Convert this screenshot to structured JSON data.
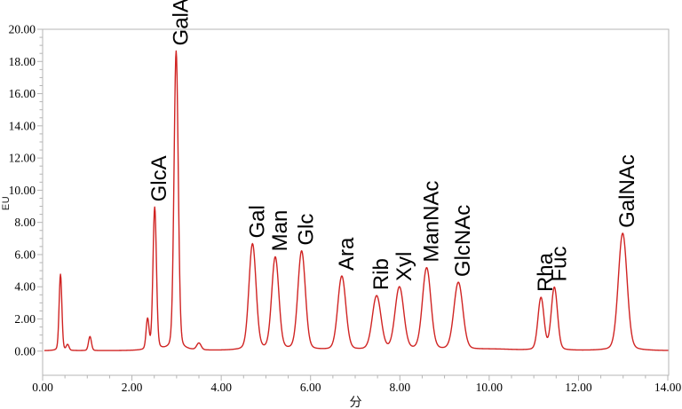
{
  "chart_data": {
    "type": "line",
    "title": "",
    "ylabel": "EU",
    "xlabel": "分",
    "xlim": [
      0,
      14
    ],
    "ylim": [
      -1.5,
      20
    ],
    "grid": false,
    "legend": "none",
    "x_major_ticks": [
      0,
      2,
      4,
      6,
      8,
      10,
      12,
      14
    ],
    "x_tick_labels": [
      "0.00",
      "2.00",
      "4.00",
      "6.00",
      "8.00",
      "10.00",
      "12.00",
      "14.00"
    ],
    "x_minor_tick_step": 0.5,
    "y_major_ticks": [
      0,
      2,
      4,
      6,
      8,
      10,
      12,
      14,
      16,
      18,
      20
    ],
    "y_tick_labels": [
      "0.00",
      "2.00",
      "4.00",
      "6.00",
      "8.00",
      "10.00",
      "12.00",
      "14.00",
      "16.00",
      "18.00",
      "20.00"
    ],
    "y_minor_tick_step": 0.5,
    "trace_color": "#d02423",
    "axis_color": "#b5b5b5",
    "tick_color": "#b5b5b5",
    "label_color": "#000000",
    "peaks": [
      {
        "rt": 0.4,
        "height": 4.75,
        "sigma": 0.03,
        "label": ""
      },
      {
        "rt": 0.56,
        "height": 0.35,
        "sigma": 0.03,
        "label": ""
      },
      {
        "rt": 1.06,
        "height": 0.88,
        "sigma": 0.032,
        "label": ""
      },
      {
        "rt": 2.35,
        "height": 1.87,
        "sigma": 0.032,
        "label": ""
      },
      {
        "rt": 2.51,
        "height": 8.85,
        "sigma": 0.038,
        "label": "GlcA"
      },
      {
        "rt": 2.99,
        "height": 18.6,
        "sigma": 0.046,
        "label": "GalA"
      },
      {
        "rt": 3.5,
        "height": 0.42,
        "sigma": 0.048,
        "label": ""
      },
      {
        "rt": 4.7,
        "height": 6.6,
        "sigma": 0.078,
        "label": "Gal"
      },
      {
        "rt": 5.21,
        "height": 5.75,
        "sigma": 0.078,
        "label": "Man"
      },
      {
        "rt": 5.8,
        "height": 6.15,
        "sigma": 0.082,
        "label": "Glc"
      },
      {
        "rt": 6.7,
        "height": 4.6,
        "sigma": 0.088,
        "label": "Ara"
      },
      {
        "rt": 7.48,
        "height": 3.35,
        "sigma": 0.095,
        "label": "Rib"
      },
      {
        "rt": 7.99,
        "height": 3.9,
        "sigma": 0.095,
        "label": "Xyl"
      },
      {
        "rt": 8.6,
        "height": 5.1,
        "sigma": 0.092,
        "label": "ManNAc"
      },
      {
        "rt": 9.31,
        "height": 4.2,
        "sigma": 0.098,
        "label": "GlcNAc"
      },
      {
        "rt": 10.1,
        "height": 0.08,
        "sigma": 0.45,
        "label": ""
      },
      {
        "rt": 11.16,
        "height": 3.25,
        "sigma": 0.066,
        "label": "Rha"
      },
      {
        "rt": 11.46,
        "height": 3.9,
        "sigma": 0.068,
        "label": "Fuc"
      },
      {
        "rt": 12.99,
        "height": 7.3,
        "sigma": 0.096,
        "label": "GalNAc"
      }
    ]
  }
}
